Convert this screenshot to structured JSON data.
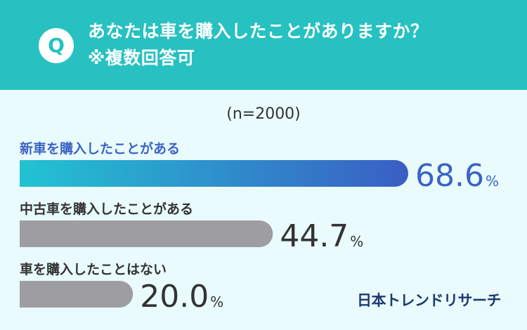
{
  "question": {
    "badge": "Q",
    "line1": "あなたは車を購入したことがありますか？",
    "line2": "※複数回答可"
  },
  "sample_label": "(n=2000)",
  "brand": "日本トレンドリサーチ",
  "colors": {
    "header": "#27c1c1",
    "background": "#e9fbfd",
    "highlight_start": "#22c3d2",
    "highlight_end": "#3a5ec4",
    "highlight_text": "#3a63c5",
    "gray_bar": "#9d9da2",
    "gray_text": "#333333"
  },
  "chart_data": {
    "type": "bar",
    "orientation": "horizontal",
    "categories": [
      "新車を購入したことがある",
      "中古車を購入したことがある",
      "車を購入したことはない"
    ],
    "values": [
      68.6,
      44.7,
      20.0
    ],
    "value_labels": [
      "68.6",
      "44.7",
      "20.0"
    ],
    "unit": "%",
    "highlight_index": 0
  }
}
